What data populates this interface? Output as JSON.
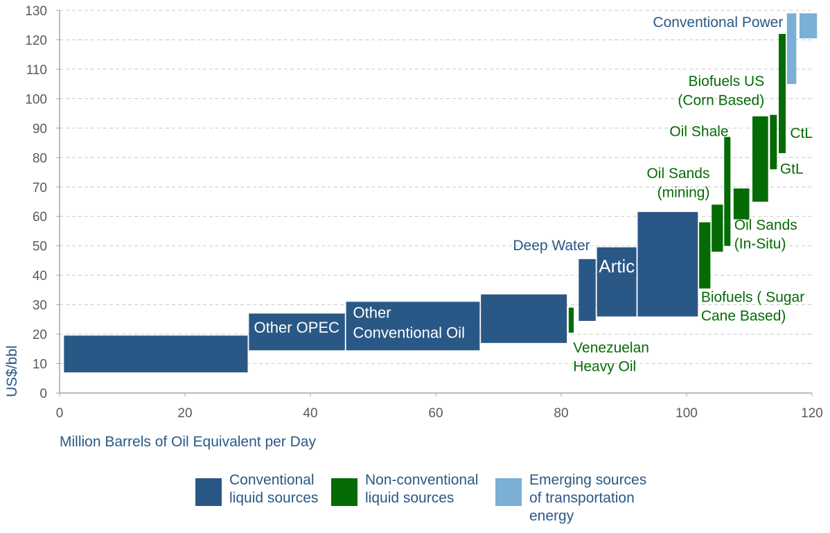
{
  "chart_data": {
    "type": "bar",
    "xlabel": "Million Barrels of Oil Equivalent per Day",
    "ylabel": "US$/bbl",
    "xlim": [
      0,
      120
    ],
    "ylim": [
      0,
      130
    ],
    "x_ticks": [
      0,
      20,
      40,
      60,
      80,
      100,
      120
    ],
    "y_ticks": [
      0,
      10,
      20,
      30,
      40,
      50,
      60,
      70,
      80,
      90,
      100,
      110,
      120,
      130
    ],
    "grid": "horizontal dashed",
    "colors": {
      "conventional": "#2a5886",
      "nonconventional": "#056b05",
      "emerging": "#7bafd6",
      "axis": "#a6a6a6",
      "tick_text": "#595959",
      "grid": "#c8c8c8"
    },
    "bars": [
      {
        "x0": 0.7,
        "x1": 30.0,
        "y0": 7,
        "y1": 19.5,
        "group": "conventional"
      },
      {
        "x0": 30.2,
        "x1": 45.5,
        "y0": 14.5,
        "y1": 27,
        "group": "conventional",
        "label": "Other OPEC"
      },
      {
        "x0": 45.7,
        "x1": 67.0,
        "y0": 14.5,
        "y1": 31,
        "group": "conventional",
        "label": "Other Conventional Oil"
      },
      {
        "x0": 67.2,
        "x1": 80.9,
        "y0": 17,
        "y1": 33.5,
        "group": "conventional"
      },
      {
        "x0": 81.2,
        "x1": 82.0,
        "y0": 20.5,
        "y1": 29,
        "group": "nonconventional",
        "label": "Venezuelan Heavy Oil"
      },
      {
        "x0": 82.8,
        "x1": 85.5,
        "y0": 24.5,
        "y1": 45.5,
        "group": "conventional",
        "label": "Deep Water"
      },
      {
        "x0": 85.7,
        "x1": 92.0,
        "y0": 26,
        "y1": 49.5,
        "group": "conventional",
        "label": "Artic"
      },
      {
        "x0": 92.2,
        "x1": 101.8,
        "y0": 26,
        "y1": 61.5,
        "group": "conventional"
      },
      {
        "x0": 102.0,
        "x1": 103.8,
        "y0": 35.5,
        "y1": 58,
        "group": "nonconventional",
        "label": "Biofuels ( Sugar Cane Based)"
      },
      {
        "x0": 104.0,
        "x1": 105.8,
        "y0": 48,
        "y1": 64,
        "group": "nonconventional",
        "label": "Oil Sands (mining)"
      },
      {
        "x0": 106.0,
        "x1": 107.0,
        "y0": 50,
        "y1": 87,
        "group": "nonconventional",
        "label": "Oil Shale"
      },
      {
        "x0": 107.5,
        "x1": 110.0,
        "y0": 59,
        "y1": 69.5,
        "group": "nonconventional",
        "label": "Oil Sands (In-Situ)"
      },
      {
        "x0": 110.5,
        "x1": 113.0,
        "y0": 65,
        "y1": 94,
        "group": "nonconventional",
        "label": "Biofuels US (Corn Based)"
      },
      {
        "x0": 113.3,
        "x1": 114.4,
        "y0": 76,
        "y1": 94.5,
        "group": "nonconventional",
        "label": "GtL"
      },
      {
        "x0": 114.7,
        "x1": 115.8,
        "y0": 81.5,
        "y1": 122,
        "group": "nonconventional",
        "label": "CtL"
      },
      {
        "x0": 116.0,
        "x1": 117.5,
        "y0": 105,
        "y1": 129,
        "group": "emerging",
        "label": "Conventional Power"
      },
      {
        "x0": 118.0,
        "x1": 120.8,
        "y0": 120.5,
        "y1": 129,
        "group": "emerging"
      }
    ],
    "annotations": [
      {
        "id": "other-opec",
        "lines": [
          "Other OPEC"
        ],
        "color": "#ffffff",
        "size": 22,
        "x": 31.0,
        "y": 20.5,
        "anchor": "start"
      },
      {
        "id": "other-conventional-oil",
        "lines": [
          "Other",
          "Conventional Oil"
        ],
        "color": "#ffffff",
        "size": 22,
        "x": 46.8,
        "y": 25.5,
        "anchor": "start"
      },
      {
        "id": "deep-water",
        "lines": [
          "Deep Water"
        ],
        "color": "#2a5886",
        "size": 21,
        "x": 84.6,
        "y": 48.5,
        "anchor": "end"
      },
      {
        "id": "artic",
        "lines": [
          "Artic"
        ],
        "color": "#ffffff",
        "size": 26,
        "x": 86.0,
        "y": 41.0,
        "anchor": "start"
      },
      {
        "id": "venezuelan-heavy-oil",
        "lines": [
          "Venezuelan",
          "Heavy Oil"
        ],
        "color": "#056b05",
        "size": 21,
        "x": 81.9,
        "y": 13.8,
        "anchor": "start"
      },
      {
        "id": "biofuels-sugar",
        "lines": [
          "Biofuels ( Sugar",
          "Cane Based)"
        ],
        "color": "#056b05",
        "size": 21,
        "x": 102.3,
        "y": 31.0,
        "anchor": "start"
      },
      {
        "id": "oil-sands-mining",
        "lines": [
          "Oil Sands",
          "(mining)"
        ],
        "color": "#056b05",
        "size": 21,
        "x": 103.7,
        "y": 73.0,
        "anchor": "end"
      },
      {
        "id": "oil-shale",
        "lines": [
          "Oil Shale"
        ],
        "color": "#056b05",
        "size": 21,
        "x": 106.7,
        "y": 87.3,
        "anchor": "end"
      },
      {
        "id": "oil-sands-insitu",
        "lines": [
          "Oil Sands",
          "(In-Situ)"
        ],
        "color": "#056b05",
        "size": 21,
        "x": 107.6,
        "y": 55.5,
        "anchor": "start"
      },
      {
        "id": "biofuels-us",
        "lines": [
          "Biofuels US",
          "(Corn Based)"
        ],
        "color": "#056b05",
        "size": 21,
        "x": 112.4,
        "y": 104.3,
        "anchor": "end"
      },
      {
        "id": "gtl",
        "lines": [
          "GtL"
        ],
        "color": "#056b05",
        "size": 21,
        "x": 114.9,
        "y": 74.5,
        "anchor": "start"
      },
      {
        "id": "ctl",
        "lines": [
          "CtL"
        ],
        "color": "#056b05",
        "size": 21,
        "x": 116.5,
        "y": 86.7,
        "anchor": "start"
      },
      {
        "id": "conventional-power",
        "lines": [
          "Conventional Power"
        ],
        "color": "#2a5886",
        "size": 21,
        "x": 115.4,
        "y": 124.3,
        "anchor": "end"
      }
    ]
  },
  "legend": {
    "items": [
      {
        "label": "Conventional liquid sources",
        "lines": [
          "Conventional",
          "liquid sources"
        ],
        "color": "#2a5886"
      },
      {
        "label": "Non-conventional liquid sources",
        "lines": [
          "Non-conventional",
          "liquid sources"
        ],
        "color": "#056b05"
      },
      {
        "label": "Emerging sources of transportation energy",
        "lines": [
          "Emerging sources",
          "of transportation",
          "energy"
        ],
        "color": "#7bafd6"
      }
    ]
  }
}
